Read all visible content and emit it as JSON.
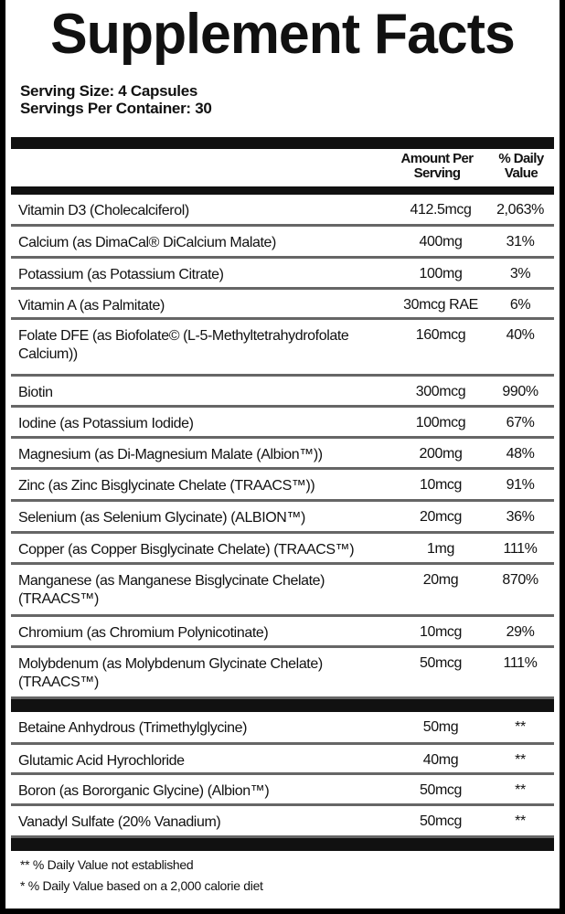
{
  "title": "Supplement Facts",
  "serving_size": "Serving Size: 4 Capsules",
  "servings_per_container": "Servings Per Container: 30",
  "headers": {
    "amount_line1": "Amount Per",
    "amount_line2": "Serving",
    "dv_line1": "% Daily",
    "dv_line2": "Value"
  },
  "rows": [
    {
      "name": "Vitamin D3 (Cholecalciferol)",
      "amount": "412.5mcg",
      "dv": "2,063%"
    },
    {
      "name": "Calcium (as DimaCal® DiCalcium Malate)",
      "amount": "400mg",
      "dv": "31%"
    },
    {
      "name": "Potassium (as Potassium Citrate)",
      "amount": "100mg",
      "dv": "3%"
    },
    {
      "name": "Vitamin A (as Palmitate)",
      "amount": "30mcg RAE",
      "dv": "6%"
    },
    {
      "name": "Folate DFE (as Biofolate© (L-5-Methyltetrahydrofolate Calcium))",
      "amount": "160mcg",
      "dv": "40%"
    },
    {
      "name": "Biotin",
      "amount": "300mcg",
      "dv": "990%"
    },
    {
      "name": "Iodine (as Potassium Iodide)",
      "amount": "100mcg",
      "dv": "67%"
    },
    {
      "name": "Magnesium (as Di-Magnesium Malate (Albion™))",
      "amount": "200mg",
      "dv": "48%"
    },
    {
      "name": "Zinc (as Zinc Bisglycinate Chelate (TRAACS™))",
      "amount": "10mcg",
      "dv": "91%"
    },
    {
      "name": "Selenium (as Selenium Glycinate) (ALBION™)",
      "amount": "20mcg",
      "dv": "36%"
    },
    {
      "name": "Copper (as Copper Bisglycinate Chelate) (TRAACS™)",
      "amount": "1mg",
      "dv": "111%"
    },
    {
      "name": "Manganese (as Manganese Bisglycinate Chelate) (TRAACS™)",
      "amount": "20mg",
      "dv": "870%"
    },
    {
      "name": "Chromium (as Chromium Polynicotinate)",
      "amount": "10mcg",
      "dv": "29%"
    },
    {
      "name": "Molybdenum (as Molybdenum Glycinate Chelate) (TRAACS™)",
      "amount": "50mcg",
      "dv": "111%"
    }
  ],
  "other_rows": [
    {
      "name": "Betaine Anhydrous (Trimethylglycine)",
      "amount": "50mg",
      "dv": "**"
    },
    {
      "name": "Glutamic Acid Hyrochloride",
      "amount": "40mg",
      "dv": "**"
    },
    {
      "name": "Boron (as Bororganic Glycine) (Albion™)",
      "amount": "50mcg",
      "dv": "**"
    },
    {
      "name": "Vanadyl Sulfate (20% Vanadium)",
      "amount": "50mcg",
      "dv": "**"
    }
  ],
  "footnotes": [
    "** % Daily Value not established",
    "* % Daily Value based on a 2,000 calorie diet"
  ]
}
